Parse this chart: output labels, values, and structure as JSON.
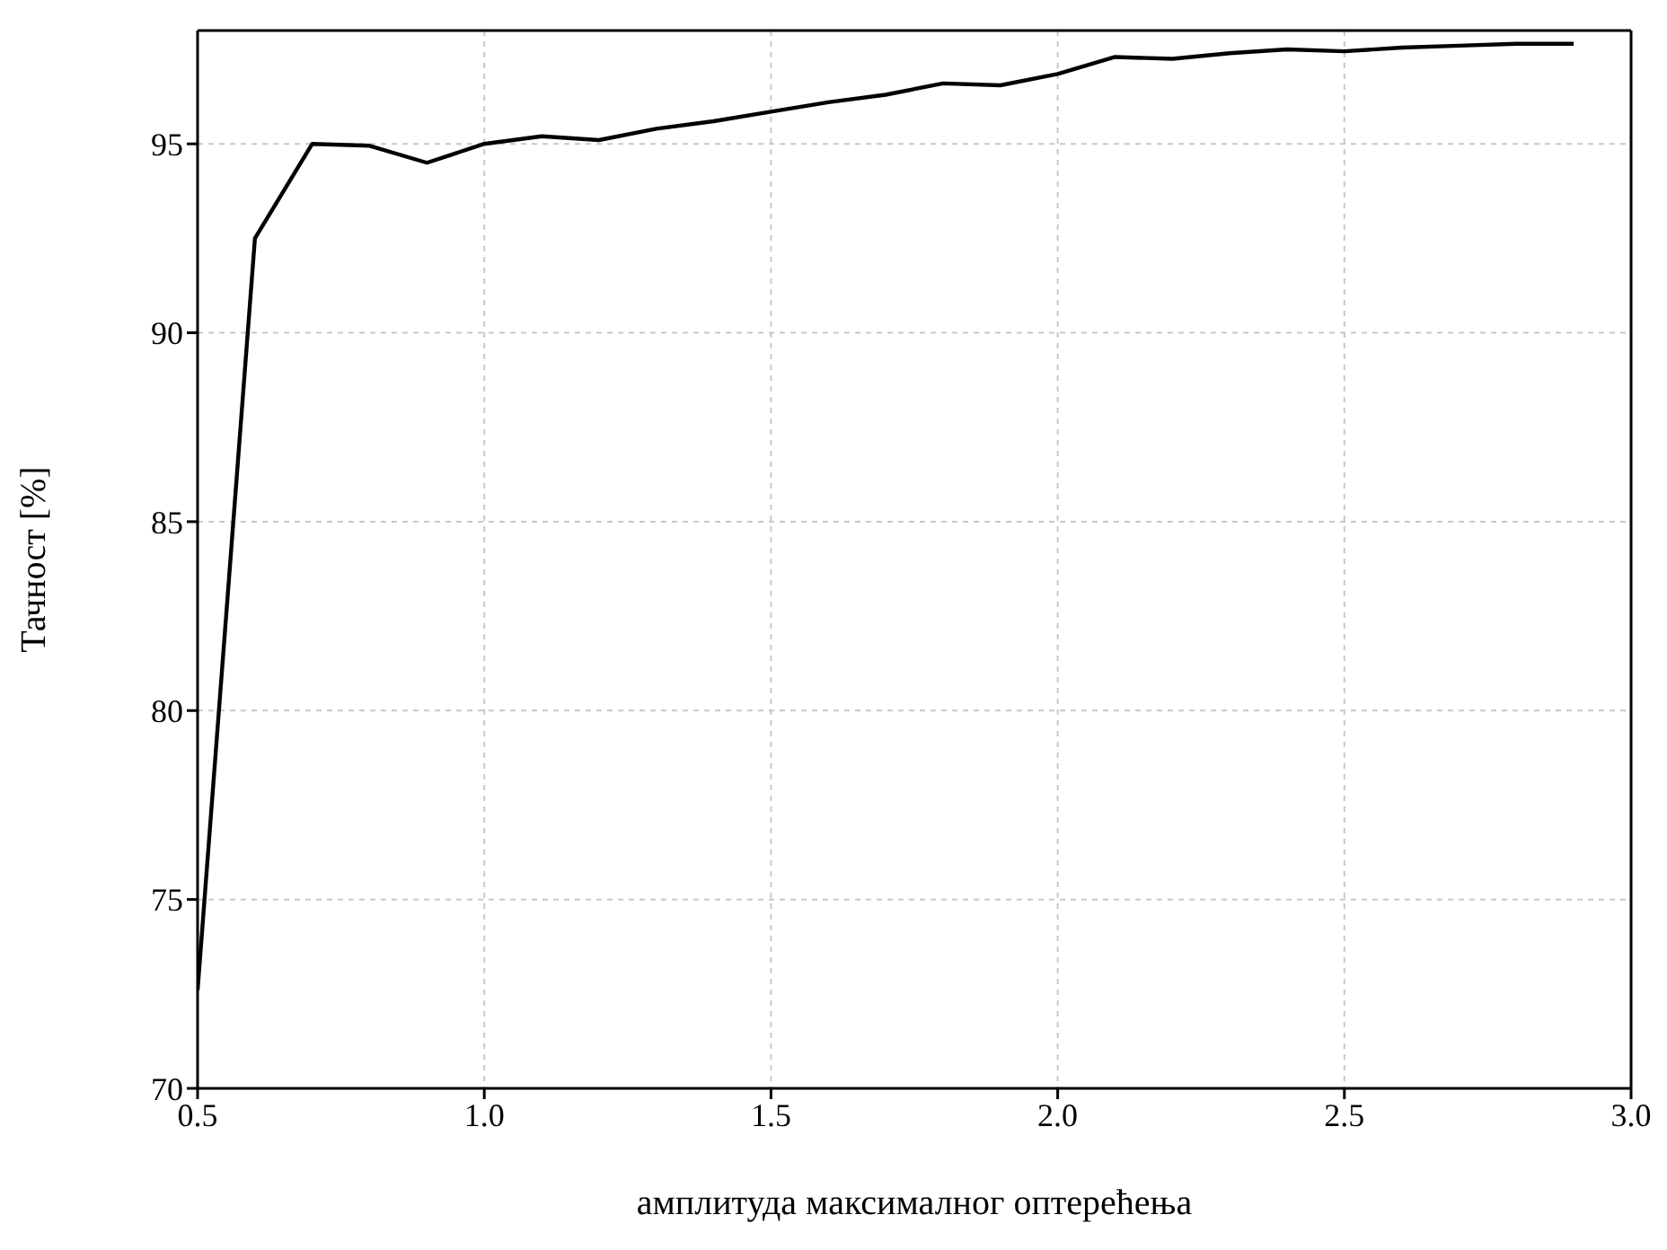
{
  "chart_data": {
    "type": "line",
    "xlabel": "амплитуда максималног оптерећења",
    "ylabel": "Тачност [%]",
    "x": [
      0.5,
      0.6,
      0.7,
      0.8,
      0.9,
      1.0,
      1.1,
      1.2,
      1.3,
      1.4,
      1.5,
      1.6,
      1.7,
      1.8,
      1.9,
      2.0,
      2.1,
      2.2,
      2.3,
      2.4,
      2.5,
      2.6,
      2.7,
      2.8,
      2.9
    ],
    "series": [
      {
        "color": "#000000",
        "values": [
          72.6,
          92.5,
          95.0,
          94.95,
          94.5,
          95.0,
          95.2,
          95.1,
          95.4,
          95.6,
          95.85,
          96.1,
          96.3,
          96.6,
          96.55,
          96.85,
          97.3,
          97.25,
          97.4,
          97.5,
          97.45,
          97.55,
          97.6,
          97.65,
          97.65
        ]
      }
    ],
    "xlim": [
      0.5,
      3.0
    ],
    "xticks": [
      {
        "value": 0.5,
        "label": "0.5"
      },
      {
        "value": 1.0,
        "label": "1.0"
      },
      {
        "value": 1.5,
        "label": "1.5"
      },
      {
        "value": 2.0,
        "label": "2.0"
      },
      {
        "value": 2.5,
        "label": "2.5"
      },
      {
        "value": 3.0,
        "label": "3.0"
      }
    ],
    "ylim": [
      70,
      98
    ],
    "yticks": [
      70,
      75,
      80,
      85,
      90,
      95
    ],
    "grid": true,
    "marker": "none",
    "line_style": "solid"
  }
}
